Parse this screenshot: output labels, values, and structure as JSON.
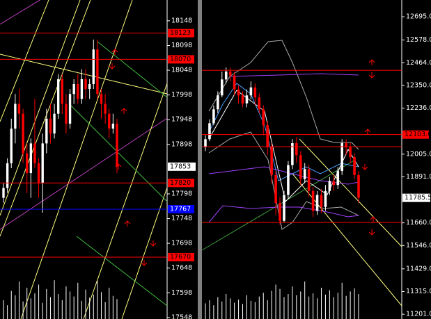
{
  "chart_data": [
    {
      "type": "candlestick",
      "ylim": [
        17545,
        18190
      ],
      "yticks": [
        18148,
        18098,
        18048,
        17998,
        17948,
        17898,
        17798,
        17748,
        17698,
        17648,
        17598,
        17548
      ],
      "last": 17853,
      "levels": [
        {
          "value": 18123,
          "color": "#ff0000"
        },
        {
          "value": 18070,
          "color": "#ff0000"
        },
        {
          "value": 17820,
          "color": "#ff0000"
        },
        {
          "value": 17767,
          "color": "#0000ff"
        },
        {
          "value": 17670,
          "color": "#ff0000"
        }
      ],
      "up_color": "#ffffff",
      "down_color": "#ff0000",
      "open": [
        17790,
        17810,
        17860,
        17930,
        17980,
        17960,
        17880,
        17840,
        17900,
        17860,
        17820,
        17900,
        17950,
        17920,
        17960,
        18030,
        17980,
        17940,
        18000,
        18020,
        17990,
        18030,
        18010,
        18020,
        18090,
        18000,
        17980,
        17960,
        17930,
        17940
      ],
      "close": [
        17810,
        17860,
        17930,
        17980,
        17960,
        17880,
        17840,
        17900,
        17860,
        17820,
        17900,
        17950,
        17920,
        17960,
        18030,
        17980,
        17940,
        18000,
        18020,
        17990,
        18030,
        18010,
        18020,
        18090,
        18000,
        17980,
        17960,
        17930,
        17940,
        17853
      ],
      "high": [
        17820,
        17870,
        17950,
        18000,
        18010,
        17970,
        17900,
        17910,
        17990,
        17870,
        17920,
        17970,
        17980,
        17980,
        18040,
        18040,
        18000,
        18010,
        18030,
        18040,
        18050,
        18050,
        18030,
        18110,
        18110,
        18010,
        18000,
        17970,
        17960,
        17950
      ],
      "low": [
        17780,
        17800,
        17850,
        17900,
        17930,
        17860,
        17800,
        17790,
        17850,
        17790,
        17760,
        17880,
        17900,
        17910,
        17950,
        17960,
        17920,
        17930,
        17980,
        17980,
        17980,
        17990,
        17990,
        18010,
        17990,
        17950,
        17940,
        17910,
        17920,
        17840
      ],
      "volume": [
        30,
        22,
        45,
        38,
        60,
        28,
        50,
        33,
        41,
        55,
        26,
        48,
        35,
        62,
        40,
        30,
        52,
        44,
        36,
        58,
        29,
        47,
        34,
        39,
        61,
        43,
        27,
        50,
        37,
        32
      ]
    },
    {
      "type": "candlestick",
      "ylim": [
        11177,
        12779
      ],
      "yticks": [
        {
          "value": 12695,
          "label": "12695.0"
        },
        {
          "value": 12578,
          "label": "12578.0"
        },
        {
          "value": 12464,
          "label": "12464.0"
        },
        {
          "value": 12350,
          "label": "12350.0"
        },
        {
          "value": 12236,
          "label": "12236.0"
        },
        {
          "value": 12005,
          "label": "12005.0"
        },
        {
          "value": 11891,
          "label": "11891.0"
        },
        {
          "value": 11660,
          "label": "11660.0"
        },
        {
          "value": 11546,
          "label": "11546.0"
        },
        {
          "value": 11429,
          "label": "11429.0"
        },
        {
          "value": 11315,
          "label": "11315.0"
        },
        {
          "value": 11201,
          "label": "11201.0"
        }
      ],
      "last": 11785.5,
      "levels": [
        {
          "value": 12426,
          "color": "#ff0000"
        },
        {
          "value": 12103,
          "label": "12103.0",
          "color": "#ff0000"
        },
        {
          "value": 12042,
          "color": "#ff0000"
        },
        {
          "value": 11662,
          "color": "#ff0000"
        }
      ],
      "up_color": "#ffffff",
      "down_color": "#ff0000",
      "open": [
        12040,
        12080,
        12160,
        12230,
        12300,
        12380,
        12420,
        12400,
        12330,
        12300,
        12260,
        12300,
        12340,
        12290,
        12230,
        12150,
        12040,
        11900,
        11760,
        11670,
        11800,
        11950,
        12060,
        12000,
        11880,
        11930,
        11820,
        11720,
        11800,
        11740,
        11820,
        11870,
        11850,
        11920,
        12060,
        12040,
        11990,
        11900
      ],
      "close": [
        12080,
        12160,
        12230,
        12300,
        12380,
        12420,
        12400,
        12330,
        12300,
        12260,
        12300,
        12340,
        12290,
        12230,
        12150,
        12040,
        11900,
        11760,
        11670,
        11800,
        11950,
        12060,
        12000,
        11880,
        11930,
        11820,
        11720,
        11800,
        11740,
        11820,
        11870,
        11850,
        11920,
        12060,
        12040,
        11990,
        11900,
        11785.5
      ],
      "high": [
        12100,
        12180,
        12250,
        12320,
        12420,
        12440,
        12440,
        12420,
        12350,
        12320,
        12330,
        12370,
        12360,
        12310,
        12250,
        12170,
        12060,
        11920,
        11790,
        11820,
        11970,
        12080,
        12090,
        12020,
        11960,
        11950,
        11840,
        11820,
        11830,
        11850,
        11890,
        11900,
        11940,
        12080,
        12080,
        12060,
        12010,
        11920
      ],
      "low": [
        12020,
        12070,
        12150,
        12210,
        12290,
        12360,
        12370,
        12300,
        12260,
        12240,
        12240,
        12280,
        12250,
        12210,
        12100,
        12000,
        11860,
        11700,
        11650,
        11660,
        11780,
        11930,
        11960,
        11850,
        11860,
        11790,
        11690,
        11700,
        11710,
        11720,
        11800,
        11820,
        11830,
        11900,
        12000,
        11960,
        11880,
        11760
      ],
      "volume": [
        25,
        30,
        22,
        35,
        28,
        40,
        33,
        26,
        31,
        24,
        38,
        29,
        27,
        36,
        42,
        30,
        45,
        55,
        48,
        35,
        40,
        52,
        38,
        44,
        60,
        36,
        41,
        33,
        50,
        39,
        46,
        35,
        42,
        58,
        37,
        44,
        49,
        40
      ]
    }
  ]
}
